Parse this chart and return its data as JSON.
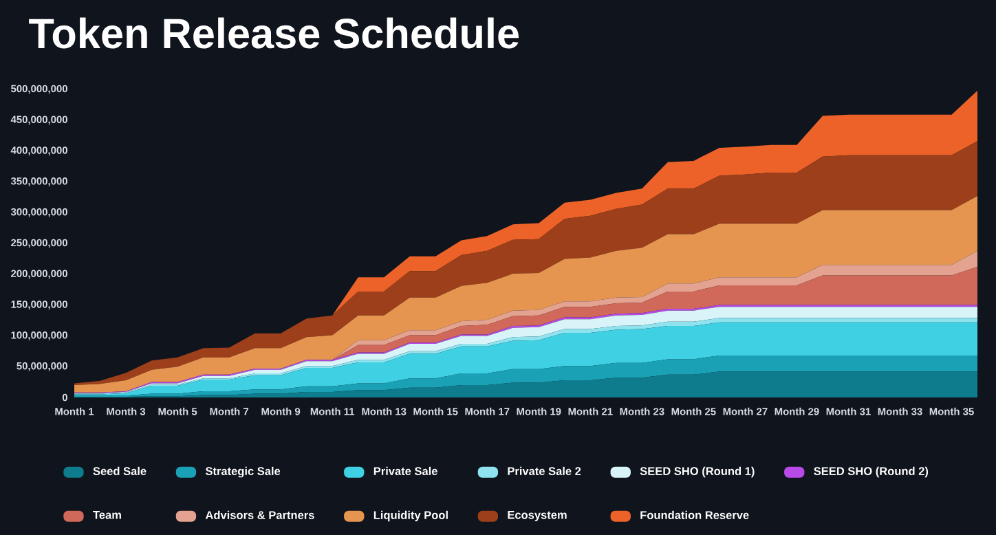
{
  "chart_data": {
    "type": "area",
    "stacked": true,
    "title": "Token Release Schedule",
    "categories": [
      "Month 1",
      null,
      "Month 3",
      null,
      "Month 5",
      null,
      "Month 7",
      null,
      "Month 9",
      null,
      "Month 11",
      null,
      "Month 13",
      null,
      "Month 15",
      null,
      "Month 17",
      null,
      "Month 19",
      null,
      "Month 21",
      null,
      "Month 23",
      null,
      "Month 25",
      null,
      "Month 27",
      null,
      "Month 29",
      null,
      "Month 31",
      null,
      "Month 33",
      null,
      "Month 35",
      null
    ],
    "ylim": [
      0,
      500000000
    ],
    "yticks": [
      0,
      {
        "value": 50000000,
        "label": "50,000,000"
      },
      {
        "value": 100000000,
        "label": "100,000,000"
      },
      {
        "value": 150000000,
        "label": "150,000,000"
      },
      {
        "value": 200000000,
        "label": "200,000,000"
      },
      {
        "value": 250000000,
        "label": "250,000,000"
      },
      {
        "value": 300000000,
        "label": "300,000,000"
      },
      {
        "value": 350000000,
        "label": "350,000,000"
      },
      {
        "value": 400000000,
        "label": "400,000,000"
      },
      {
        "value": 450000000,
        "label": "450,000,000"
      },
      {
        "value": 500000000,
        "label": "500,000,000"
      }
    ],
    "legend": "bottom",
    "series": [
      {
        "name": "Seed Sale",
        "color": "#0e7c8c",
        "values": [
          1000000,
          1000000,
          1000000,
          2000000,
          2000000,
          4000000,
          4000000,
          6000000,
          6000000,
          9000000,
          9000000,
          12000000,
          12000000,
          16000000,
          16000000,
          20000000,
          20000000,
          24000000,
          24000000,
          28000000,
          28000000,
          32000000,
          32000000,
          37000000,
          37000000,
          42000000,
          42000000,
          42000000,
          42000000,
          42000000,
          42000000,
          42000000,
          42000000,
          42000000,
          42000000,
          42000000
        ]
      },
      {
        "name": "Strategic Sale",
        "color": "#1ba1b5",
        "values": [
          2000000,
          2000000,
          2000000,
          4000000,
          4000000,
          6000000,
          6000000,
          7000000,
          7000000,
          9000000,
          9000000,
          11000000,
          11000000,
          15000000,
          15000000,
          19000000,
          19000000,
          22000000,
          22000000,
          23000000,
          23000000,
          24000000,
          24000000,
          25000000,
          25000000,
          26000000,
          26000000,
          26000000,
          26000000,
          26000000,
          26000000,
          26000000,
          26000000,
          26000000,
          26000000,
          26000000
        ]
      },
      {
        "name": "Private Sale",
        "color": "#3fd0e3",
        "values": [
          2000000,
          2000000,
          4000000,
          13000000,
          13000000,
          19000000,
          19000000,
          23000000,
          23000000,
          30000000,
          30000000,
          34000000,
          34000000,
          40000000,
          40000000,
          44000000,
          44000000,
          46000000,
          47000000,
          54000000,
          54000000,
          54000000,
          55000000,
          54000000,
          54000000,
          54000000,
          54000000,
          54000000,
          54000000,
          54000000,
          54000000,
          54000000,
          54000000,
          54000000,
          54000000,
          54000000
        ]
      },
      {
        "name": "Private Sale 2",
        "color": "#8ee3ef",
        "values": [
          1000000,
          1000000,
          1000000,
          2000000,
          2000000,
          2000000,
          2000000,
          3000000,
          3000000,
          3000000,
          3000000,
          4000000,
          4000000,
          4000000,
          4000000,
          4000000,
          4000000,
          6000000,
          6000000,
          6000000,
          6000000,
          6000000,
          6000000,
          7000000,
          7000000,
          7000000,
          7000000,
          7000000,
          7000000,
          7000000,
          7000000,
          7000000,
          7000000,
          7000000,
          7000000,
          7000000
        ]
      },
      {
        "name": "SEED SHO (Round 1)",
        "color": "#d8f4f8",
        "values": [
          1000000,
          1000000,
          1000000,
          2000000,
          2000000,
          4000000,
          4000000,
          6000000,
          6000000,
          8000000,
          8000000,
          10000000,
          10000000,
          12000000,
          12000000,
          13000000,
          13000000,
          15000000,
          15000000,
          16000000,
          16000000,
          17000000,
          17000000,
          18000000,
          18000000,
          18000000,
          18000000,
          18000000,
          18000000,
          18000000,
          18000000,
          18000000,
          18000000,
          18000000,
          18000000,
          18000000
        ]
      },
      {
        "name": "SEED SHO (Round 2)",
        "color": "#b84ae8",
        "values": [
          1000000,
          1000000,
          1000000,
          2000000,
          2000000,
          2000000,
          2000000,
          2000000,
          2000000,
          2000000,
          2000000,
          2000000,
          2000000,
          2000000,
          2000000,
          2000000,
          2000000,
          3000000,
          3000000,
          3000000,
          3000000,
          3000000,
          3000000,
          3000000,
          3000000,
          3000000,
          3000000,
          3000000,
          3000000,
          3000000,
          3000000,
          3000000,
          3000000,
          3000000,
          3000000,
          3000000
        ]
      },
      {
        "name": "Team",
        "color": "#d0695a",
        "values": [
          0,
          0,
          0,
          0,
          0,
          0,
          0,
          0,
          0,
          0,
          0,
          12000000,
          12000000,
          12000000,
          12000000,
          14000000,
          16000000,
          16000000,
          16000000,
          17000000,
          17000000,
          17000000,
          17000000,
          28000000,
          28000000,
          32000000,
          32000000,
          32000000,
          32000000,
          48000000,
          48000000,
          48000000,
          48000000,
          48000000,
          48000000,
          62000000
        ]
      },
      {
        "name": "Advisors & Partners",
        "color": "#e3a390",
        "values": [
          0,
          0,
          0,
          0,
          0,
          0,
          0,
          0,
          0,
          0,
          0,
          8000000,
          8000000,
          8000000,
          8000000,
          8000000,
          8000000,
          9000000,
          9000000,
          9000000,
          9000000,
          9000000,
          9000000,
          13000000,
          13000000,
          13000000,
          13000000,
          13000000,
          13000000,
          17000000,
          17000000,
          17000000,
          17000000,
          17000000,
          17000000,
          26000000
        ]
      },
      {
        "name": "Liquidity Pool",
        "color": "#e59550",
        "values": [
          12000000,
          14000000,
          18000000,
          20000000,
          25000000,
          28000000,
          28000000,
          33000000,
          33000000,
          37000000,
          40000000,
          40000000,
          40000000,
          53000000,
          53000000,
          57000000,
          60000000,
          60000000,
          60000000,
          69000000,
          71000000,
          76000000,
          80000000,
          80000000,
          80000000,
          87000000,
          87000000,
          87000000,
          87000000,
          89000000,
          89000000,
          89000000,
          89000000,
          89000000,
          89000000,
          89000000
        ]
      },
      {
        "name": "Ecosystem",
        "color": "#9c3f1a",
        "values": [
          3000000,
          5000000,
          12000000,
          15000000,
          15000000,
          15000000,
          16000000,
          24000000,
          24000000,
          30000000,
          32000000,
          39000000,
          39000000,
          43000000,
          43000000,
          50000000,
          52000000,
          55000000,
          55000000,
          65000000,
          68000000,
          68000000,
          70000000,
          74000000,
          74000000,
          78000000,
          80000000,
          83000000,
          83000000,
          87000000,
          89000000,
          89000000,
          89000000,
          89000000,
          89000000,
          89000000
        ]
      },
      {
        "name": "Foundation Reserve",
        "color": "#ec6228",
        "values": [
          0,
          0,
          0,
          0,
          0,
          0,
          0,
          0,
          0,
          0,
          0,
          23000000,
          23000000,
          24000000,
          24000000,
          24000000,
          24000000,
          25000000,
          26000000,
          26000000,
          26000000,
          26000000,
          26000000,
          43000000,
          45000000,
          45000000,
          45000000,
          45000000,
          45000000,
          66000000,
          66000000,
          66000000,
          66000000,
          66000000,
          66000000,
          82000000
        ]
      }
    ]
  }
}
